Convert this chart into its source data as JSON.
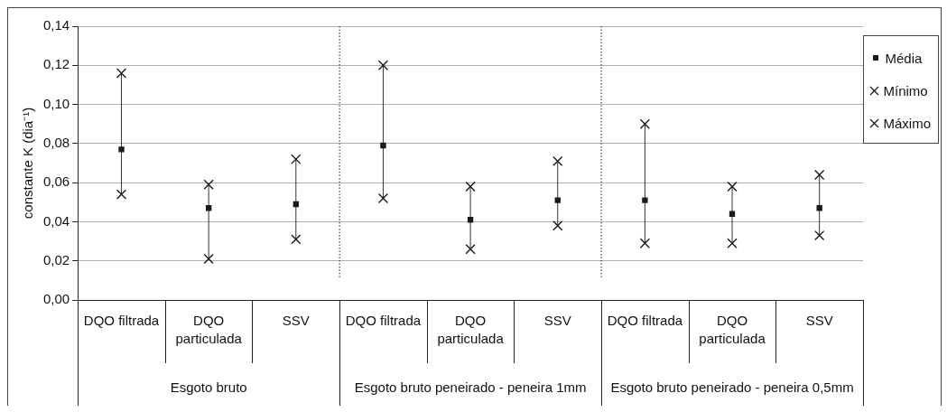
{
  "chart_data": {
    "type": "scatter",
    "ylabel": "constante K (dia⁻¹)",
    "categories": [
      "DQO filtrada",
      "DQO particulada",
      "SSV",
      "DQO filtrada",
      "DQO particulada",
      "SSV",
      "DQO filtrada",
      "DQO particulada",
      "SSV"
    ],
    "annotations": [
      "Esgoto bruto",
      "Esgoto bruto peneirado - peneira 1mm",
      "Esgoto bruto peneirado - peneira 0,5mm"
    ],
    "series": [
      {
        "name": "Média",
        "color": "#1a1a1a",
        "marker": "square",
        "values": [
          0.077,
          0.047,
          0.049,
          0.079,
          0.041,
          0.051,
          0.051,
          0.044,
          0.047
        ]
      },
      {
        "name": "Mínimo",
        "color": "#1a1a1a",
        "marker": "cross",
        "values": [
          0.054,
          0.021,
          0.031,
          0.052,
          0.026,
          0.038,
          0.029,
          0.029,
          0.033
        ]
      },
      {
        "name": "Máximo",
        "color": "#1a1a1a",
        "marker": "cross",
        "values": [
          0.116,
          0.059,
          0.072,
          0.12,
          0.058,
          0.071,
          0.09,
          0.058,
          0.064
        ]
      }
    ],
    "ylim": [
      0,
      0.14
    ],
    "yticks": [
      {
        "value": 0,
        "label": "0,00"
      },
      {
        "value": 0.02,
        "label": "0,02"
      },
      {
        "value": 0.04,
        "label": "0,04"
      },
      {
        "value": 0.06,
        "label": "0,06"
      },
      {
        "value": 0.08,
        "label": "0,08"
      },
      {
        "value": 0.1,
        "label": "0,10"
      },
      {
        "value": 0.12,
        "label": "0,12"
      },
      {
        "value": 0.14,
        "label": "0,14"
      }
    ],
    "grid": "y",
    "legend": "top right"
  }
}
